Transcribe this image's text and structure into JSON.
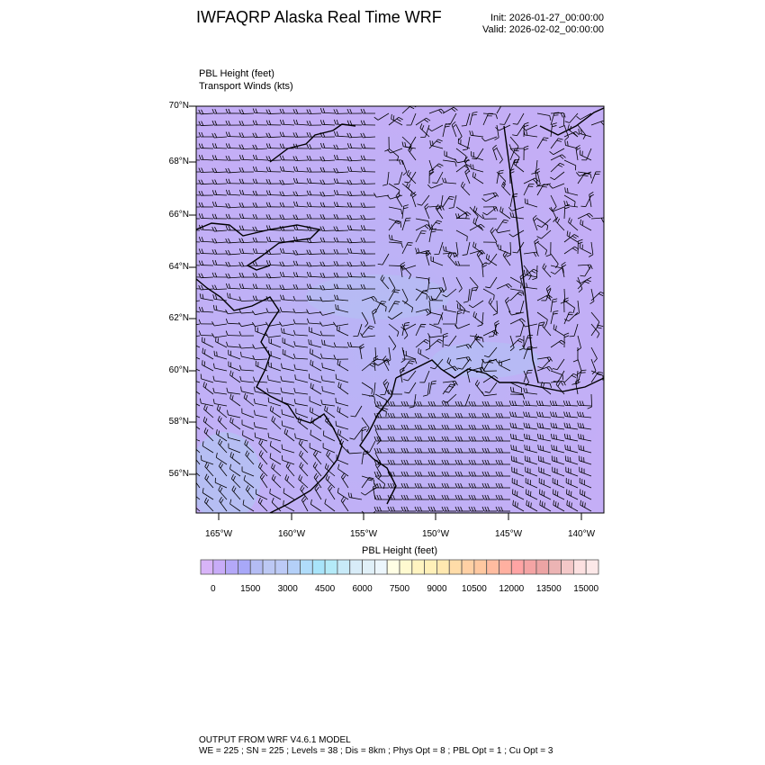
{
  "header": {
    "title": "IWFAQRP Alaska Real Time WRF",
    "init": "Init: 2026-01-27_00:00:00",
    "valid": "Valid: 2026-02-02_00:00:00"
  },
  "variables": {
    "line1": "PBL Height   (feet)",
    "line2": "Transport Winds   (kts)"
  },
  "map": {
    "region": "Alaska",
    "lat_labels": [
      "70°N",
      "68°N",
      "66°N",
      "64°N",
      "62°N",
      "60°N",
      "58°N",
      "56°N"
    ],
    "lon_labels": [
      "165°W",
      "160°W",
      "155°W",
      "150°W",
      "145°W",
      "140°W"
    ],
    "field_color_dominant": "#c0b0f4",
    "overlay": "wind-barbs",
    "coastline_color": "#000000"
  },
  "colorbar": {
    "title": "PBL Height  (feet)",
    "labels": [
      "0",
      "1500",
      "3000",
      "4500",
      "6000",
      "7500",
      "9000",
      "10500",
      "12000",
      "13500",
      "15000"
    ],
    "colors": [
      "#d8b4f8",
      "#c8acf8",
      "#b4a8f8",
      "#a8a8f8",
      "#b4bcf4",
      "#bcc8f4",
      "#bccaf6",
      "#b4d0f8",
      "#b0dcfa",
      "#a8e4fa",
      "#b4eaf8",
      "#c8eaf8",
      "#d8ecf8",
      "#e0f0f8",
      "#ecf6fc",
      "#fffee4",
      "#fffad0",
      "#fff4c0",
      "#fff0b8",
      "#ffe8b0",
      "#ffdca8",
      "#ffd0a4",
      "#ffc8a0",
      "#ffbca0",
      "#ffb0a0",
      "#ffa4a4",
      "#f4a4a4",
      "#eca4a4",
      "#ecb4b4",
      "#f4c8c8",
      "#fce0e0",
      "#fce8e8"
    ]
  },
  "footer": {
    "line1": "OUTPUT FROM WRF V4.6.1 MODEL",
    "line2": "WE = 225 ; SN = 225 ; Levels = 38 ; Dis = 8km ; Phys Opt = 8 ; PBL Opt = 1 ; Cu Opt = 3"
  }
}
